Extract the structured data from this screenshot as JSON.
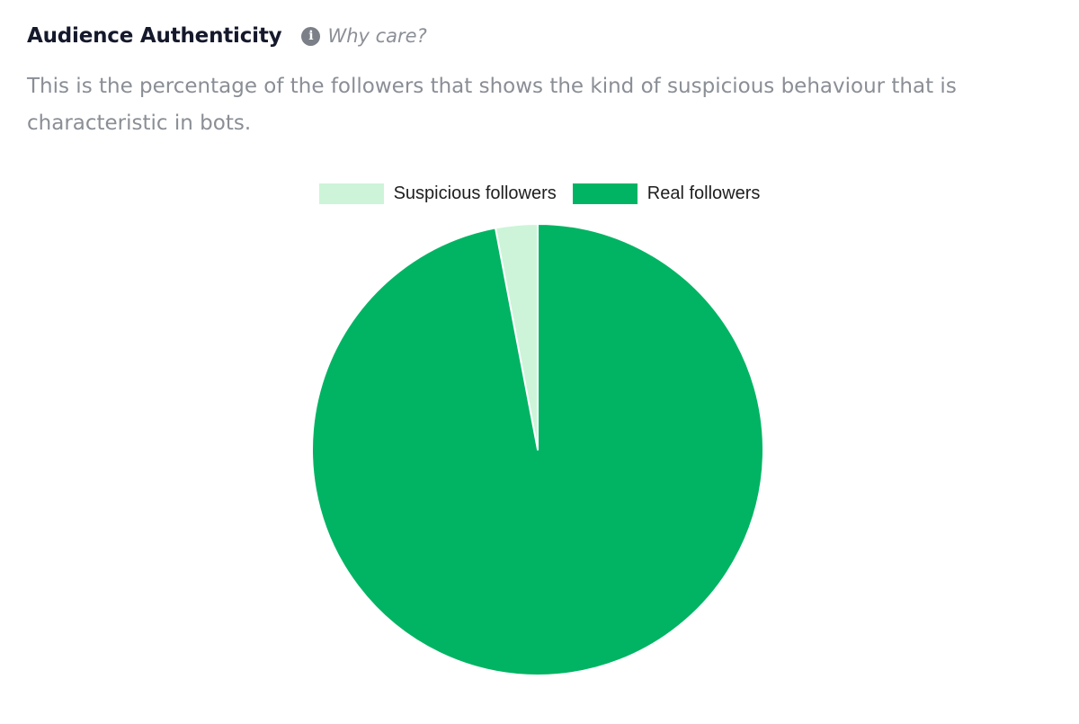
{
  "section": {
    "title": "Audience Authenticity",
    "why_care_label": "Why care?",
    "info_icon": "info-circle-icon",
    "description": "This is the percentage of the followers that shows the kind of suspicious behaviour that is characteristic in bots."
  },
  "chart_data": {
    "type": "pie",
    "legend_position": "top-center",
    "categories": [
      "Suspicious followers",
      "Real followers"
    ],
    "values": [
      3,
      97
    ],
    "colors": [
      "#cdf4d8",
      "#00b463"
    ],
    "start_angle": "top, clockwise"
  }
}
